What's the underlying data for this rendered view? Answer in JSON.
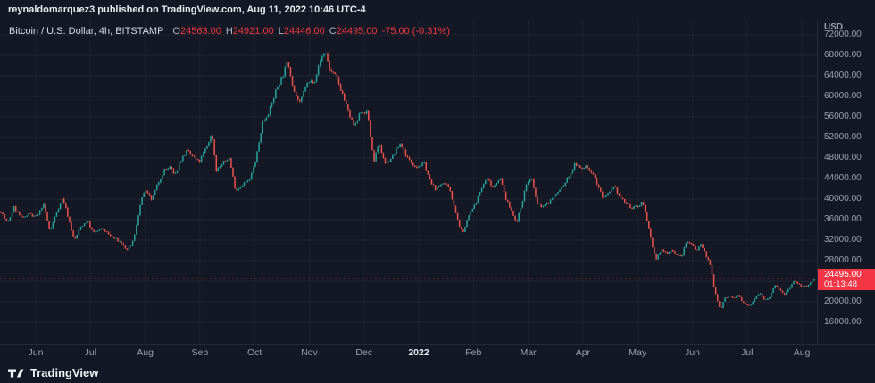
{
  "header": {
    "attribution": "reynaldomarquez3 published on TradingView.com, Aug 11, 2022 10:46 UTC-4"
  },
  "legend": {
    "symbol": "Bitcoin / U.S. Dollar, 4h, BITSTAMP",
    "open_label": "O",
    "open": "24563.00",
    "high_label": "H",
    "high": "24921.00",
    "low_label": "L",
    "low": "24446.00",
    "close_label": "C",
    "close": "24495.00",
    "change": "-75.00 (-0.31%)"
  },
  "price_axis": {
    "currency": "USD",
    "ticks": [
      "72000.00",
      "68000.00",
      "64000.00",
      "60000.00",
      "56000.00",
      "52000.00",
      "48000.00",
      "44000.00",
      "40000.00",
      "36000.00",
      "32000.00",
      "28000.00",
      "20000.00",
      "16000.00"
    ],
    "badge": {
      "price": "24495.00",
      "countdown": "01:13:48"
    }
  },
  "time_axis": {
    "labels": [
      "Jun",
      "Jul",
      "Aug",
      "Sep",
      "Oct",
      "Nov",
      "Dec",
      "2022",
      "Feb",
      "Mar",
      "Apr",
      "May",
      "Jun",
      "Jul",
      "Aug"
    ]
  },
  "footer": {
    "brand": "TradingView"
  },
  "colors": {
    "background": "#141824",
    "up": "#26a69a",
    "down": "#ef5350",
    "last_price": "#f23645",
    "grid": "rgba(255,255,255,0.05)",
    "muted_text": "#9aa0ad"
  },
  "chart_data": {
    "type": "candlestick",
    "title": "Bitcoin / U.S. Dollar",
    "interval": "4h",
    "exchange": "BITSTAMP",
    "last_candle": {
      "open": 24563.0,
      "high": 24921.0,
      "low": 24446.0,
      "close": 24495.0,
      "change": -75.0,
      "change_pct": -0.31
    },
    "ylim": [
      14000,
      74000
    ],
    "y_ticks": [
      16000,
      20000,
      24000,
      28000,
      32000,
      36000,
      40000,
      44000,
      48000,
      52000,
      56000,
      60000,
      64000,
      68000,
      72000
    ],
    "x_labels": [
      "Jun",
      "Jul",
      "Aug",
      "Sep",
      "Oct",
      "Nov",
      "Dec",
      "2022",
      "Feb",
      "Mar",
      "Apr",
      "May",
      "Jun",
      "Jul",
      "Aug"
    ],
    "series_name": "BTC/USD price (anchor points: [time-fraction, price USD])",
    "anchors": [
      [
        0.0,
        37600
      ],
      [
        0.008,
        35200
      ],
      [
        0.016,
        38400
      ],
      [
        0.026,
        36100
      ],
      [
        0.034,
        37300
      ],
      [
        0.04,
        36500
      ],
      [
        0.046,
        36900
      ],
      [
        0.052,
        39200
      ],
      [
        0.06,
        33600
      ],
      [
        0.068,
        37400
      ],
      [
        0.076,
        40300
      ],
      [
        0.084,
        35600
      ],
      [
        0.09,
        31900
      ],
      [
        0.098,
        34600
      ],
      [
        0.106,
        35800
      ],
      [
        0.113,
        33400
      ],
      [
        0.125,
        34200
      ],
      [
        0.135,
        32700
      ],
      [
        0.148,
        31500
      ],
      [
        0.155,
        29900
      ],
      [
        0.163,
        32100
      ],
      [
        0.17,
        38300
      ],
      [
        0.176,
        41700
      ],
      [
        0.185,
        39900
      ],
      [
        0.193,
        43200
      ],
      [
        0.2,
        45600
      ],
      [
        0.208,
        46200
      ],
      [
        0.213,
        44400
      ],
      [
        0.22,
        47500
      ],
      [
        0.228,
        49300
      ],
      [
        0.236,
        48200
      ],
      [
        0.243,
        47100
      ],
      [
        0.252,
        50100
      ],
      [
        0.259,
        52800
      ],
      [
        0.264,
        45600
      ],
      [
        0.272,
        46900
      ],
      [
        0.28,
        48100
      ],
      [
        0.288,
        41600
      ],
      [
        0.296,
        42900
      ],
      [
        0.305,
        43600
      ],
      [
        0.313,
        47800
      ],
      [
        0.321,
        54900
      ],
      [
        0.33,
        57400
      ],
      [
        0.338,
        61500
      ],
      [
        0.346,
        64200
      ],
      [
        0.352,
        66800
      ],
      [
        0.36,
        60900
      ],
      [
        0.367,
        58500
      ],
      [
        0.374,
        62200
      ],
      [
        0.385,
        63300
      ],
      [
        0.393,
        67500
      ],
      [
        0.398,
        68800
      ],
      [
        0.404,
        64900
      ],
      [
        0.412,
        63600
      ],
      [
        0.42,
        60100
      ],
      [
        0.427,
        56500
      ],
      [
        0.434,
        54000
      ],
      [
        0.442,
        57200
      ],
      [
        0.45,
        56800
      ],
      [
        0.457,
        47300
      ],
      [
        0.464,
        50600
      ],
      [
        0.472,
        46800
      ],
      [
        0.481,
        48400
      ],
      [
        0.49,
        50900
      ],
      [
        0.5,
        47600
      ],
      [
        0.51,
        46300
      ],
      [
        0.52,
        46900
      ],
      [
        0.527,
        43100
      ],
      [
        0.534,
        41900
      ],
      [
        0.542,
        43300
      ],
      [
        0.55,
        42000
      ],
      [
        0.556,
        38700
      ],
      [
        0.562,
        35000
      ],
      [
        0.567,
        33400
      ],
      [
        0.574,
        36800
      ],
      [
        0.58,
        38400
      ],
      [
        0.588,
        41500
      ],
      [
        0.596,
        44100
      ],
      [
        0.604,
        42300
      ],
      [
        0.612,
        44300
      ],
      [
        0.62,
        39800
      ],
      [
        0.628,
        37200
      ],
      [
        0.633,
        35400
      ],
      [
        0.639,
        39200
      ],
      [
        0.645,
        43100
      ],
      [
        0.651,
        44000
      ],
      [
        0.658,
        39000
      ],
      [
        0.666,
        38500
      ],
      [
        0.674,
        39800
      ],
      [
        0.682,
        41100
      ],
      [
        0.69,
        42600
      ],
      [
        0.698,
        44800
      ],
      [
        0.705,
        47000
      ],
      [
        0.711,
        45800
      ],
      [
        0.718,
        46400
      ],
      [
        0.726,
        45200
      ],
      [
        0.733,
        42300
      ],
      [
        0.739,
        40100
      ],
      [
        0.746,
        41000
      ],
      [
        0.753,
        42400
      ],
      [
        0.759,
        40500
      ],
      [
        0.767,
        39200
      ],
      [
        0.775,
        38200
      ],
      [
        0.782,
        38600
      ],
      [
        0.787,
        39600
      ],
      [
        0.793,
        35800
      ],
      [
        0.799,
        30800
      ],
      [
        0.804,
        28300
      ],
      [
        0.81,
        30100
      ],
      [
        0.817,
        29500
      ],
      [
        0.823,
        30200
      ],
      [
        0.829,
        29100
      ],
      [
        0.835,
        28700
      ],
      [
        0.841,
        31700
      ],
      [
        0.847,
        31500
      ],
      [
        0.853,
        29900
      ],
      [
        0.859,
        31300
      ],
      [
        0.865,
        29100
      ],
      [
        0.871,
        26800
      ],
      [
        0.875,
        22500
      ],
      [
        0.879,
        20400
      ],
      [
        0.883,
        18400
      ],
      [
        0.887,
        20600
      ],
      [
        0.893,
        21100
      ],
      [
        0.899,
        20700
      ],
      [
        0.905,
        21300
      ],
      [
        0.909,
        20100
      ],
      [
        0.914,
        19300
      ],
      [
        0.919,
        19200
      ],
      [
        0.925,
        20800
      ],
      [
        0.931,
        21900
      ],
      [
        0.937,
        20300
      ],
      [
        0.943,
        20900
      ],
      [
        0.949,
        23200
      ],
      [
        0.955,
        22500
      ],
      [
        0.961,
        21300
      ],
      [
        0.967,
        22600
      ],
      [
        0.973,
        23900
      ],
      [
        0.979,
        23300
      ],
      [
        0.985,
        22900
      ],
      [
        0.991,
        23300
      ],
      [
        0.995,
        23950
      ],
      [
        1.0,
        24495
      ]
    ]
  }
}
